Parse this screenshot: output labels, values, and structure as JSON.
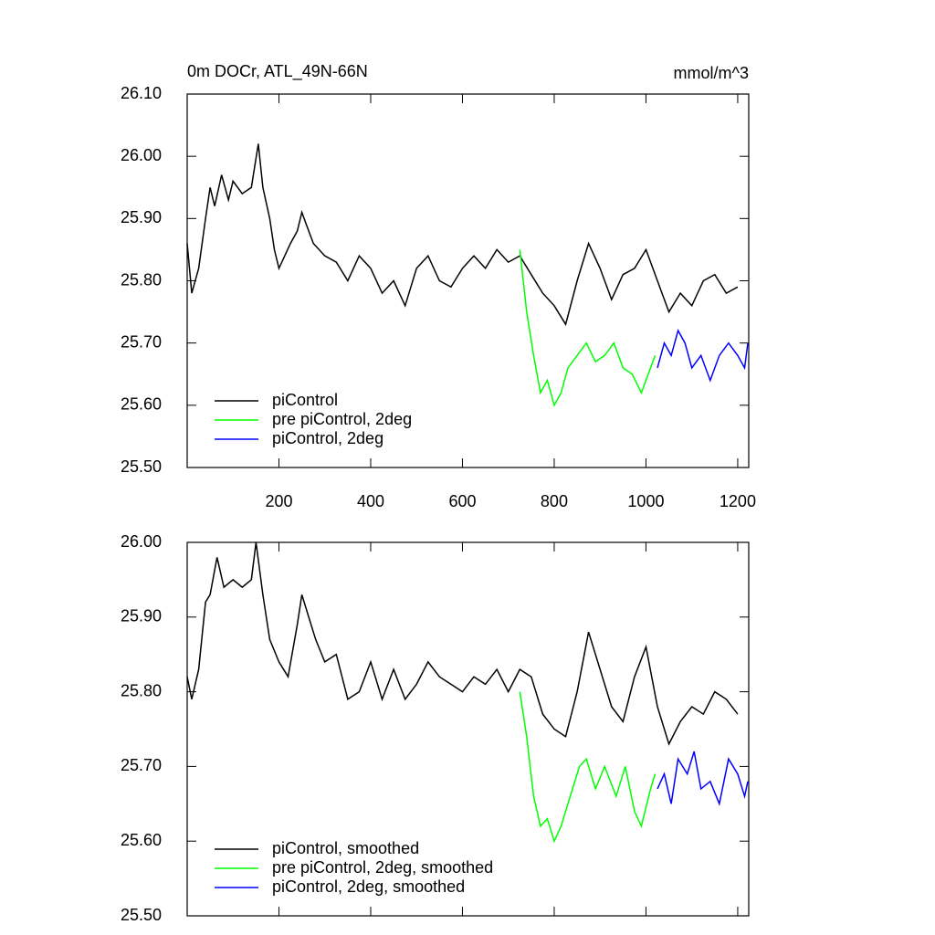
{
  "chart_data": [
    {
      "type": "line",
      "title": "0m DOCr, ATL_49N-66N",
      "subtitle": "mmol/m^3",
      "xlim": [
        0,
        1224
      ],
      "xticks": [
        200,
        400,
        600,
        800,
        1000,
        1200
      ],
      "ylim": [
        25.5,
        26.1
      ],
      "yticks": [
        {
          "value": 25.5,
          "label": "25.50"
        },
        {
          "value": 25.6,
          "label": "25.60"
        },
        {
          "value": 25.7,
          "label": "25.70"
        },
        {
          "value": 25.8,
          "label": "25.80"
        },
        {
          "value": 25.9,
          "label": "25.90"
        },
        {
          "value": 26.0,
          "label": "26.00"
        },
        {
          "value": 26.1,
          "label": "26.10"
        }
      ],
      "legend": "lower-left",
      "series": [
        {
          "name": "piControl",
          "color": "#000000",
          "x": [
            0,
            10,
            25,
            40,
            50,
            60,
            75,
            90,
            100,
            120,
            140,
            155,
            165,
            180,
            190,
            200,
            225,
            240,
            250,
            260,
            275,
            300,
            325,
            350,
            375,
            400,
            425,
            450,
            475,
            500,
            525,
            550,
            575,
            600,
            625,
            650,
            675,
            700,
            725,
            750,
            775,
            800,
            825,
            850,
            875,
            900,
            925,
            950,
            975,
            1000,
            1025,
            1050,
            1075,
            1100,
            1125,
            1150,
            1175,
            1200
          ],
          "values": [
            25.86,
            25.78,
            25.82,
            25.9,
            25.95,
            25.92,
            25.97,
            25.93,
            25.96,
            25.94,
            25.95,
            26.02,
            25.95,
            25.9,
            25.85,
            25.82,
            25.86,
            25.88,
            25.91,
            25.89,
            25.86,
            25.84,
            25.83,
            25.8,
            25.84,
            25.82,
            25.78,
            25.8,
            25.76,
            25.82,
            25.84,
            25.8,
            25.79,
            25.82,
            25.84,
            25.82,
            25.85,
            25.83,
            25.84,
            25.81,
            25.78,
            25.76,
            25.73,
            25.8,
            25.86,
            25.82,
            25.77,
            25.81,
            25.82,
            25.85,
            25.8,
            25.75,
            25.78,
            25.76,
            25.8,
            25.81,
            25.78,
            25.79
          ]
        },
        {
          "name": "pre piControl, 2deg",
          "color": "#00ff00",
          "x": [
            725,
            740,
            755,
            770,
            785,
            800,
            815,
            830,
            850,
            870,
            890,
            910,
            930,
            950,
            970,
            990,
            1010,
            1020
          ],
          "values": [
            25.85,
            25.75,
            25.68,
            25.62,
            25.64,
            25.6,
            25.62,
            25.66,
            25.68,
            25.7,
            25.67,
            25.68,
            25.7,
            25.66,
            25.65,
            25.62,
            25.66,
            25.68
          ]
        },
        {
          "name": "piControl, 2deg",
          "color": "#0000ff",
          "x": [
            1025,
            1040,
            1055,
            1070,
            1085,
            1100,
            1120,
            1140,
            1160,
            1180,
            1200,
            1215,
            1222
          ],
          "values": [
            25.66,
            25.7,
            25.68,
            25.72,
            25.7,
            25.66,
            25.68,
            25.64,
            25.68,
            25.7,
            25.68,
            25.66,
            25.7
          ]
        }
      ]
    },
    {
      "type": "line",
      "xlim": [
        0,
        1224
      ],
      "xticks": [
        200,
        400,
        600,
        800,
        1000,
        1200
      ],
      "ylim": [
        25.5,
        26.0
      ],
      "yticks": [
        {
          "value": 25.5,
          "label": "25.50"
        },
        {
          "value": 25.6,
          "label": "25.60"
        },
        {
          "value": 25.7,
          "label": "25.70"
        },
        {
          "value": 25.8,
          "label": "25.80"
        },
        {
          "value": 25.9,
          "label": "25.90"
        },
        {
          "value": 26.0,
          "label": "26.00"
        }
      ],
      "legend": "lower-left",
      "series": [
        {
          "name": "piControl, smoothed",
          "color": "#000000",
          "x": [
            0,
            10,
            25,
            40,
            50,
            65,
            80,
            100,
            120,
            140,
            150,
            165,
            180,
            200,
            220,
            240,
            250,
            260,
            280,
            300,
            325,
            350,
            375,
            400,
            425,
            450,
            475,
            500,
            525,
            550,
            575,
            600,
            625,
            650,
            675,
            700,
            725,
            750,
            775,
            800,
            825,
            850,
            875,
            900,
            925,
            950,
            975,
            1000,
            1025,
            1050,
            1075,
            1100,
            1125,
            1150,
            1175,
            1200
          ],
          "values": [
            25.82,
            25.79,
            25.83,
            25.92,
            25.93,
            25.98,
            25.94,
            25.95,
            25.94,
            25.95,
            26.0,
            25.93,
            25.87,
            25.84,
            25.82,
            25.89,
            25.93,
            25.91,
            25.87,
            25.84,
            25.85,
            25.79,
            25.8,
            25.84,
            25.79,
            25.83,
            25.79,
            25.81,
            25.84,
            25.82,
            25.81,
            25.8,
            25.82,
            25.81,
            25.83,
            25.8,
            25.83,
            25.82,
            25.77,
            25.75,
            25.74,
            25.8,
            25.88,
            25.83,
            25.78,
            25.76,
            25.82,
            25.86,
            25.78,
            25.73,
            25.76,
            25.78,
            25.77,
            25.8,
            25.79,
            25.77
          ]
        },
        {
          "name": "pre piControl, 2deg, smoothed",
          "color": "#00ff00",
          "x": [
            725,
            740,
            755,
            770,
            785,
            800,
            815,
            835,
            855,
            870,
            890,
            910,
            935,
            955,
            975,
            990,
            1010,
            1020
          ],
          "values": [
            25.8,
            25.74,
            25.66,
            25.62,
            25.63,
            25.6,
            25.62,
            25.66,
            25.7,
            25.71,
            25.67,
            25.7,
            25.66,
            25.7,
            25.64,
            25.62,
            25.67,
            25.69
          ]
        },
        {
          "name": "piControl, 2deg, smoothed",
          "color": "#0000ff",
          "x": [
            1025,
            1040,
            1055,
            1070,
            1090,
            1105,
            1120,
            1140,
            1160,
            1180,
            1200,
            1215,
            1222
          ],
          "values": [
            25.67,
            25.69,
            25.65,
            25.71,
            25.69,
            25.72,
            25.67,
            25.68,
            25.65,
            25.71,
            25.69,
            25.66,
            25.68
          ]
        }
      ]
    }
  ]
}
